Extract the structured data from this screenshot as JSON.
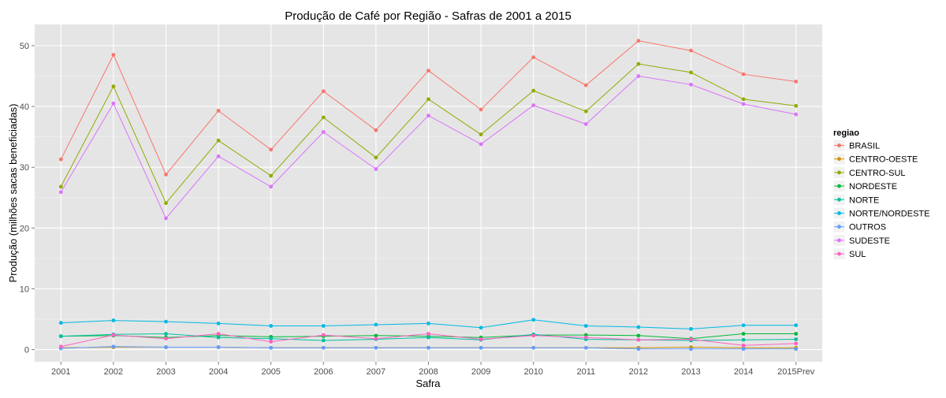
{
  "chart_data": {
    "type": "line",
    "title": "Produção de Café por Região - Safras de 2001 a 2015",
    "xlabel": "Safra",
    "ylabel": "Produção (milhões sacas beneficiadas)",
    "categories": [
      "2001",
      "2002",
      "2003",
      "2004",
      "2005",
      "2006",
      "2007",
      "2008",
      "2009",
      "2010",
      "2011",
      "2012",
      "2013",
      "2014",
      "2015Prev"
    ],
    "ylim": [
      -2,
      53.5
    ],
    "yticks": [
      0,
      10,
      20,
      30,
      40,
      50
    ],
    "grid": true,
    "legend": {
      "title": "regiao",
      "position": "right"
    },
    "series": [
      {
        "name": "BRASIL",
        "color": "#F8766D",
        "values": [
          31.3,
          48.5,
          28.8,
          39.3,
          32.9,
          42.5,
          36.1,
          45.9,
          39.5,
          48.1,
          43.5,
          50.8,
          49.2,
          45.3,
          44.1
        ]
      },
      {
        "name": "CENTRO-OESTE",
        "color": "#D39200",
        "values": [
          0.3,
          0.4,
          0.4,
          0.4,
          0.3,
          0.3,
          0.3,
          0.3,
          0.3,
          0.3,
          0.3,
          0.3,
          0.4,
          0.3,
          0.3
        ]
      },
      {
        "name": "CENTRO-SUL",
        "color": "#93AA00",
        "values": [
          26.8,
          43.3,
          24.1,
          34.4,
          28.6,
          38.2,
          31.6,
          41.2,
          35.4,
          42.6,
          39.2,
          47.0,
          45.6,
          41.2,
          40.1
        ]
      },
      {
        "name": "NORDESTE",
        "color": "#00BA38",
        "values": [
          2.2,
          2.3,
          2.0,
          2.3,
          2.1,
          2.2,
          2.3,
          2.2,
          2.0,
          2.4,
          2.4,
          2.3,
          1.8,
          2.6,
          2.6
        ]
      },
      {
        "name": "NORTE",
        "color": "#00C19F",
        "values": [
          2.2,
          2.5,
          2.6,
          2.0,
          1.8,
          1.5,
          1.7,
          2.0,
          1.6,
          2.5,
          1.7,
          1.6,
          1.5,
          1.6,
          1.7
        ]
      },
      {
        "name": "NORTE/NORDESTE",
        "color": "#00B9E3",
        "values": [
          4.4,
          4.8,
          4.6,
          4.3,
          3.9,
          3.9,
          4.1,
          4.3,
          3.6,
          4.9,
          3.9,
          3.7,
          3.4,
          4.0,
          4.0
        ]
      },
      {
        "name": "OUTROS",
        "color": "#619CFF",
        "values": [
          0.2,
          0.5,
          0.4,
          0.4,
          0.3,
          0.3,
          0.3,
          0.3,
          0.3,
          0.3,
          0.3,
          0.1,
          0.1,
          0.1,
          0.1
        ]
      },
      {
        "name": "SUDESTE",
        "color": "#DB72FB",
        "values": [
          25.9,
          40.5,
          21.6,
          31.8,
          26.8,
          35.8,
          29.7,
          38.5,
          33.8,
          40.2,
          37.1,
          45.0,
          43.6,
          40.4,
          38.7
        ]
      },
      {
        "name": "SUL",
        "color": "#FF61C3",
        "values": [
          0.5,
          2.4,
          1.8,
          2.6,
          1.3,
          2.4,
          1.8,
          2.6,
          1.7,
          2.3,
          2.0,
          1.6,
          1.7,
          0.7,
          1.0
        ]
      }
    ]
  }
}
